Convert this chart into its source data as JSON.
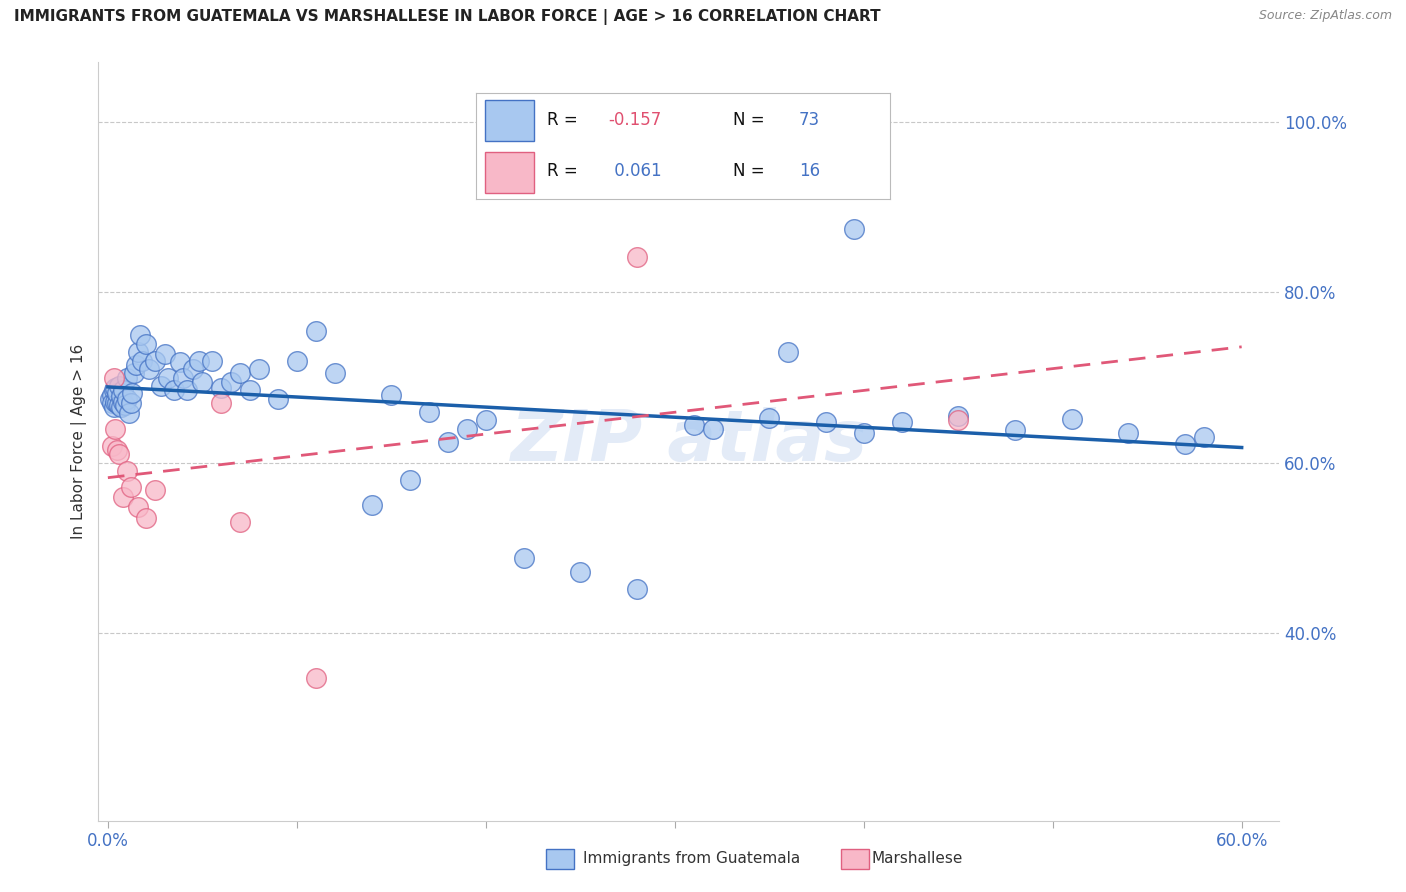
{
  "title": "IMMIGRANTS FROM GUATEMALA VS MARSHALLESE IN LABOR FORCE | AGE > 16 CORRELATION CHART",
  "source": "Source: ZipAtlas.com",
  "ylabel": "In Labor Force | Age > 16",
  "xlim": [
    -0.005,
    0.62
  ],
  "ylim": [
    0.18,
    1.07
  ],
  "xticks": [
    0.0,
    0.1,
    0.2,
    0.3,
    0.4,
    0.5,
    0.6
  ],
  "xticklabels": [
    "0.0%",
    "",
    "",
    "",
    "",
    "",
    "60.0%"
  ],
  "yticks_right": [
    0.4,
    0.6,
    0.8,
    1.0
  ],
  "ytick_right_labels": [
    "40.0%",
    "60.0%",
    "80.0%",
    "100.0%"
  ],
  "blue_color": "#A8C8F0",
  "blue_edge_color": "#4472C4",
  "blue_line_color": "#1B5FAA",
  "pink_color": "#F8B8C8",
  "pink_edge_color": "#E06080",
  "pink_line_color": "#E05878",
  "background_color": "#ffffff",
  "grid_color": "#C8C8C8",
  "axis_color": "#4472C4",
  "title_color": "#222222",
  "source_color": "#888888",
  "legend_r_label_color": "#111111",
  "legend_r_blue_value_color": "#E05070",
  "legend_r_pink_value_color": "#4472C4",
  "legend_n_color": "#4472C4",
  "watermark_color": "#C8D8F0",
  "blue_x": [
    0.001,
    0.002,
    0.002,
    0.003,
    0.003,
    0.004,
    0.004,
    0.005,
    0.005,
    0.006,
    0.006,
    0.007,
    0.007,
    0.008,
    0.008,
    0.009,
    0.01,
    0.01,
    0.011,
    0.012,
    0.013,
    0.014,
    0.015,
    0.016,
    0.017,
    0.018,
    0.02,
    0.022,
    0.025,
    0.028,
    0.03,
    0.032,
    0.035,
    0.038,
    0.04,
    0.042,
    0.045,
    0.048,
    0.05,
    0.055,
    0.06,
    0.065,
    0.07,
    0.075,
    0.08,
    0.09,
    0.1,
    0.11,
    0.12,
    0.14,
    0.16,
    0.18,
    0.2,
    0.22,
    0.25,
    0.28,
    0.31,
    0.35,
    0.38,
    0.4,
    0.42,
    0.45,
    0.48,
    0.51,
    0.54,
    0.57,
    0.395,
    0.36,
    0.32,
    0.15,
    0.17,
    0.19,
    0.58
  ],
  "blue_y": [
    0.675,
    0.68,
    0.67,
    0.685,
    0.665,
    0.672,
    0.688,
    0.67,
    0.682,
    0.668,
    0.69,
    0.665,
    0.678,
    0.672,
    0.685,
    0.668,
    0.675,
    0.7,
    0.658,
    0.67,
    0.682,
    0.705,
    0.715,
    0.73,
    0.75,
    0.72,
    0.74,
    0.71,
    0.72,
    0.69,
    0.728,
    0.7,
    0.685,
    0.718,
    0.7,
    0.685,
    0.71,
    0.72,
    0.695,
    0.72,
    0.688,
    0.695,
    0.705,
    0.685,
    0.71,
    0.675,
    0.72,
    0.755,
    0.705,
    0.55,
    0.58,
    0.625,
    0.65,
    0.488,
    0.472,
    0.452,
    0.645,
    0.653,
    0.648,
    0.635,
    0.648,
    0.655,
    0.638,
    0.652,
    0.635,
    0.622,
    0.875,
    0.73,
    0.64,
    0.68,
    0.66,
    0.64,
    0.63
  ],
  "pink_x": [
    0.002,
    0.003,
    0.004,
    0.005,
    0.006,
    0.008,
    0.01,
    0.012,
    0.016,
    0.02,
    0.025,
    0.06,
    0.07,
    0.11,
    0.28,
    0.45
  ],
  "pink_y": [
    0.62,
    0.7,
    0.64,
    0.615,
    0.61,
    0.56,
    0.59,
    0.572,
    0.548,
    0.535,
    0.568,
    0.67,
    0.53,
    0.348,
    0.842,
    0.65
  ]
}
